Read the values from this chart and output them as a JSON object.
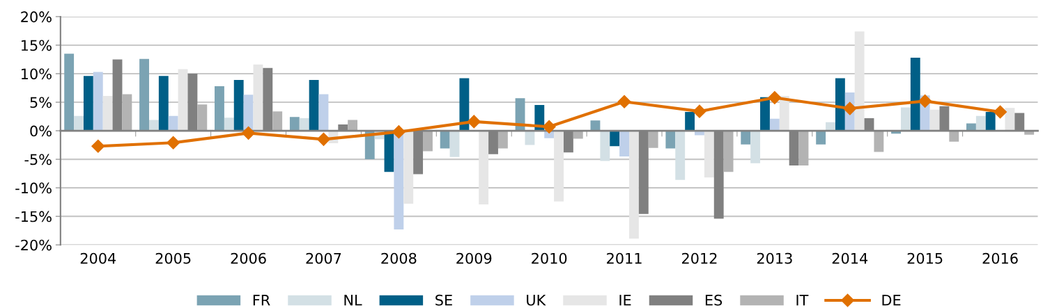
{
  "chart_data": {
    "type": "bar",
    "categories": [
      "2004",
      "2005",
      "2006",
      "2007",
      "2008",
      "2009",
      "2010",
      "2011",
      "2012",
      "2013",
      "2014",
      "2015",
      "2016"
    ],
    "series": [
      {
        "name": "FR",
        "color": "#7ba3b3",
        "values": [
          13.5,
          12.6,
          7.8,
          2.4,
          -5.0,
          -3.1,
          5.7,
          1.8,
          -3.1,
          -2.4,
          -2.4,
          -0.5,
          1.3
        ]
      },
      {
        "name": "NL",
        "color": "#d3e0e5",
        "values": [
          2.6,
          1.9,
          2.3,
          2.2,
          -1.5,
          -4.6,
          -2.5,
          -5.3,
          -8.6,
          -5.7,
          1.5,
          4.1,
          2.6
        ]
      },
      {
        "name": "SE",
        "color": "#005f87",
        "values": [
          9.6,
          9.6,
          8.9,
          8.9,
          -7.2,
          9.2,
          4.5,
          -2.7,
          3.3,
          5.9,
          9.2,
          12.8,
          3.3
        ]
      },
      {
        "name": "UK",
        "color": "#bfd0ea",
        "values": [
          10.3,
          2.6,
          6.3,
          6.4,
          -17.3,
          null,
          -1.3,
          -4.5,
          -0.8,
          2.1,
          6.7,
          6.2,
          null
        ]
      },
      {
        "name": "IE",
        "color": "#e6e6e6",
        "values": [
          6.1,
          10.8,
          11.6,
          -2.2,
          -12.8,
          -12.9,
          -12.4,
          -18.9,
          -8.2,
          6.1,
          17.4,
          3.7,
          4.0
        ]
      },
      {
        "name": "ES",
        "color": "#808080",
        "values": [
          12.5,
          10.0,
          11.0,
          1.1,
          -7.6,
          -4.1,
          -3.8,
          -14.6,
          -15.4,
          -6.1,
          2.2,
          4.3,
          3.1
        ]
      },
      {
        "name": "IT",
        "color": "#b3b3b3",
        "values": [
          6.4,
          4.6,
          3.4,
          1.9,
          -3.6,
          -3.1,
          -1.4,
          -3.0,
          -7.2,
          -6.1,
          -3.7,
          -1.9,
          -0.7
        ]
      },
      {
        "name": "DE",
        "type": "line",
        "color": "#e07000",
        "marker": "diamond",
        "values": [
          -2.7,
          -2.1,
          -0.4,
          -1.5,
          -0.2,
          1.6,
          0.7,
          5.1,
          3.4,
          5.8,
          3.9,
          5.2,
          3.3
        ]
      }
    ],
    "ylim": [
      -20,
      20
    ],
    "yticks": [
      {
        "value": -20,
        "label": "-20%"
      },
      {
        "value": -15,
        "label": "-15%"
      },
      {
        "value": -10,
        "label": "-10%"
      },
      {
        "value": -5,
        "label": "-5%"
      },
      {
        "value": 0,
        "label": "0%"
      },
      {
        "value": 5,
        "label": "5%"
      },
      {
        "value": 10,
        "label": "10%"
      },
      {
        "value": 15,
        "label": "15%"
      },
      {
        "value": 20,
        "label": "20%"
      }
    ],
    "grid": "y",
    "legend": "bottom"
  }
}
